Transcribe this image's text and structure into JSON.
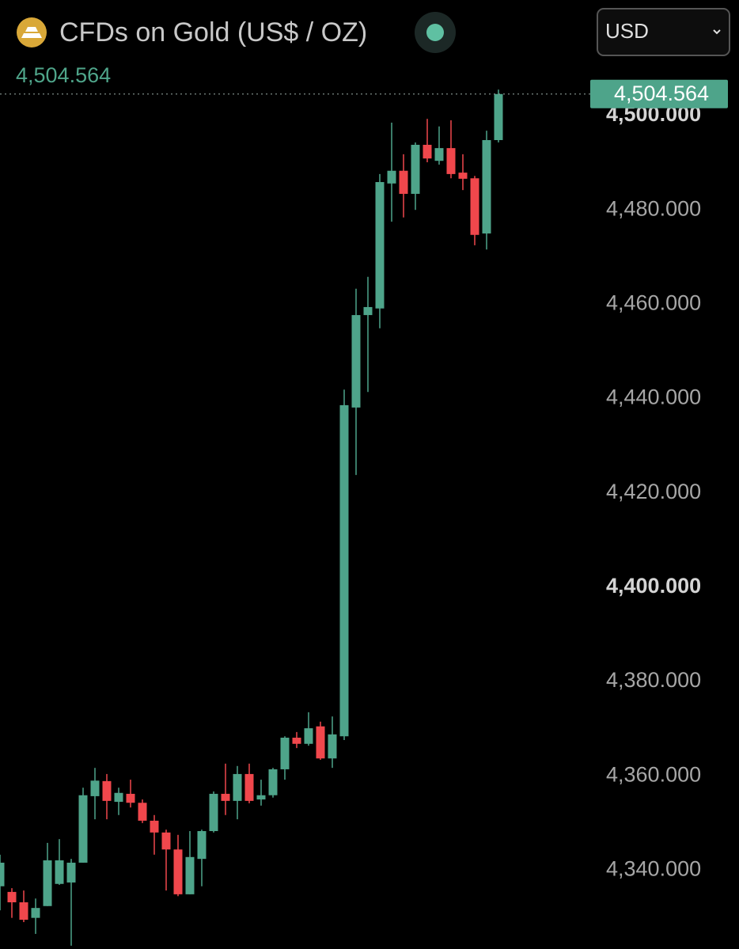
{
  "header": {
    "title": "CFDs on Gold (US$ / OZ)",
    "currency": "USD"
  },
  "chart_data": {
    "type": "candlestick",
    "up_color": "#4ea48a",
    "down_color": "#f0474c",
    "last_price": {
      "value": 4504.564,
      "label": "4,504.564"
    },
    "ylim": [
      4323.3,
      4524.5
    ],
    "yticks": [
      {
        "value": 4340,
        "label": "4,340.000"
      },
      {
        "value": 4360,
        "label": "4,360.000"
      },
      {
        "value": 4380,
        "label": "4,380.000"
      },
      {
        "value": 4400,
        "label": "4,400.000"
      },
      {
        "value": 4420,
        "label": "4,420.000"
      },
      {
        "value": 4440,
        "label": "4,440.000"
      },
      {
        "value": 4460,
        "label": "4,460.000"
      },
      {
        "value": 4480,
        "label": "4,480.000"
      },
      {
        "value": 4500,
        "label": "4,500.000"
      }
    ],
    "open": [
      4336.6,
      4335.4,
      4333.2,
      4329.9,
      4332.4,
      4337.1,
      4337.4,
      4341.6,
      4355.7,
      4358.9,
      4354.5,
      4356.2,
      4354.3,
      4350.5,
      4348.0,
      4344.4,
      4334.9,
      4342.4,
      4348.3,
      4356.2,
      4354.7,
      4360.4,
      4355.0,
      4355.9,
      4361.4,
      4368.1,
      4366.8,
      4370.5,
      4363.7,
      4368.4,
      4438.1,
      4457.7,
      4459.1,
      4485.6,
      4488.3,
      4483.4,
      4493.8,
      4490.4,
      4493.1,
      4487.9,
      4486.7,
      4475.0,
      4494.8
    ],
    "high": [
      4343.3,
      4336.2,
      4335.7,
      4334.0,
      4345.8,
      4346.6,
      4342.4,
      4357.5,
      4361.7,
      4360.4,
      4357.5,
      4359.2,
      4355.0,
      4351.7,
      4348.6,
      4347.5,
      4348.3,
      4348.6,
      4356.7,
      4362.6,
      4362.1,
      4362.6,
      4359.2,
      4361.7,
      4368.4,
      4369.3,
      4373.5,
      4371.5,
      4372.6,
      4441.9,
      4463.3,
      4465.8,
      4487.6,
      4498.5,
      4491.8,
      4494.3,
      4499.3,
      4497.7,
      4499.0,
      4491.8,
      4487.2,
      4496.8,
      4505.5
    ],
    "low": [
      4331.5,
      4329.9,
      4329.0,
      4326.5,
      4332.4,
      4336.9,
      4324.0,
      4341.6,
      4350.8,
      4350.8,
      4351.7,
      4353.3,
      4350.0,
      4343.3,
      4335.7,
      4334.5,
      4334.9,
      4336.6,
      4348.0,
      4351.7,
      4350.8,
      4354.2,
      4353.7,
      4355.4,
      4359.2,
      4365.9,
      4366.4,
      4363.4,
      4361.7,
      4367.6,
      4423.8,
      4441.4,
      4454.9,
      4477.5,
      4478.4,
      4480.0,
      4490.1,
      4489.6,
      4486.7,
      4484.2,
      4472.5,
      4471.6,
      4494.3
    ],
    "close": [
      4341.6,
      4333.2,
      4329.5,
      4332.0,
      4342.1,
      4342.1,
      4341.6,
      4355.9,
      4359.0,
      4354.7,
      4356.4,
      4354.3,
      4350.5,
      4348.0,
      4344.4,
      4334.9,
      4342.8,
      4348.3,
      4356.2,
      4354.7,
      4360.4,
      4354.7,
      4355.9,
      4361.4,
      4368.1,
      4366.8,
      4370.1,
      4363.7,
      4368.8,
      4438.6,
      4457.7,
      4459.4,
      4485.9,
      4488.3,
      4483.4,
      4493.8,
      4490.9,
      4493.1,
      4487.6,
      4486.6,
      4474.7,
      4494.8,
      4504.564
    ]
  }
}
